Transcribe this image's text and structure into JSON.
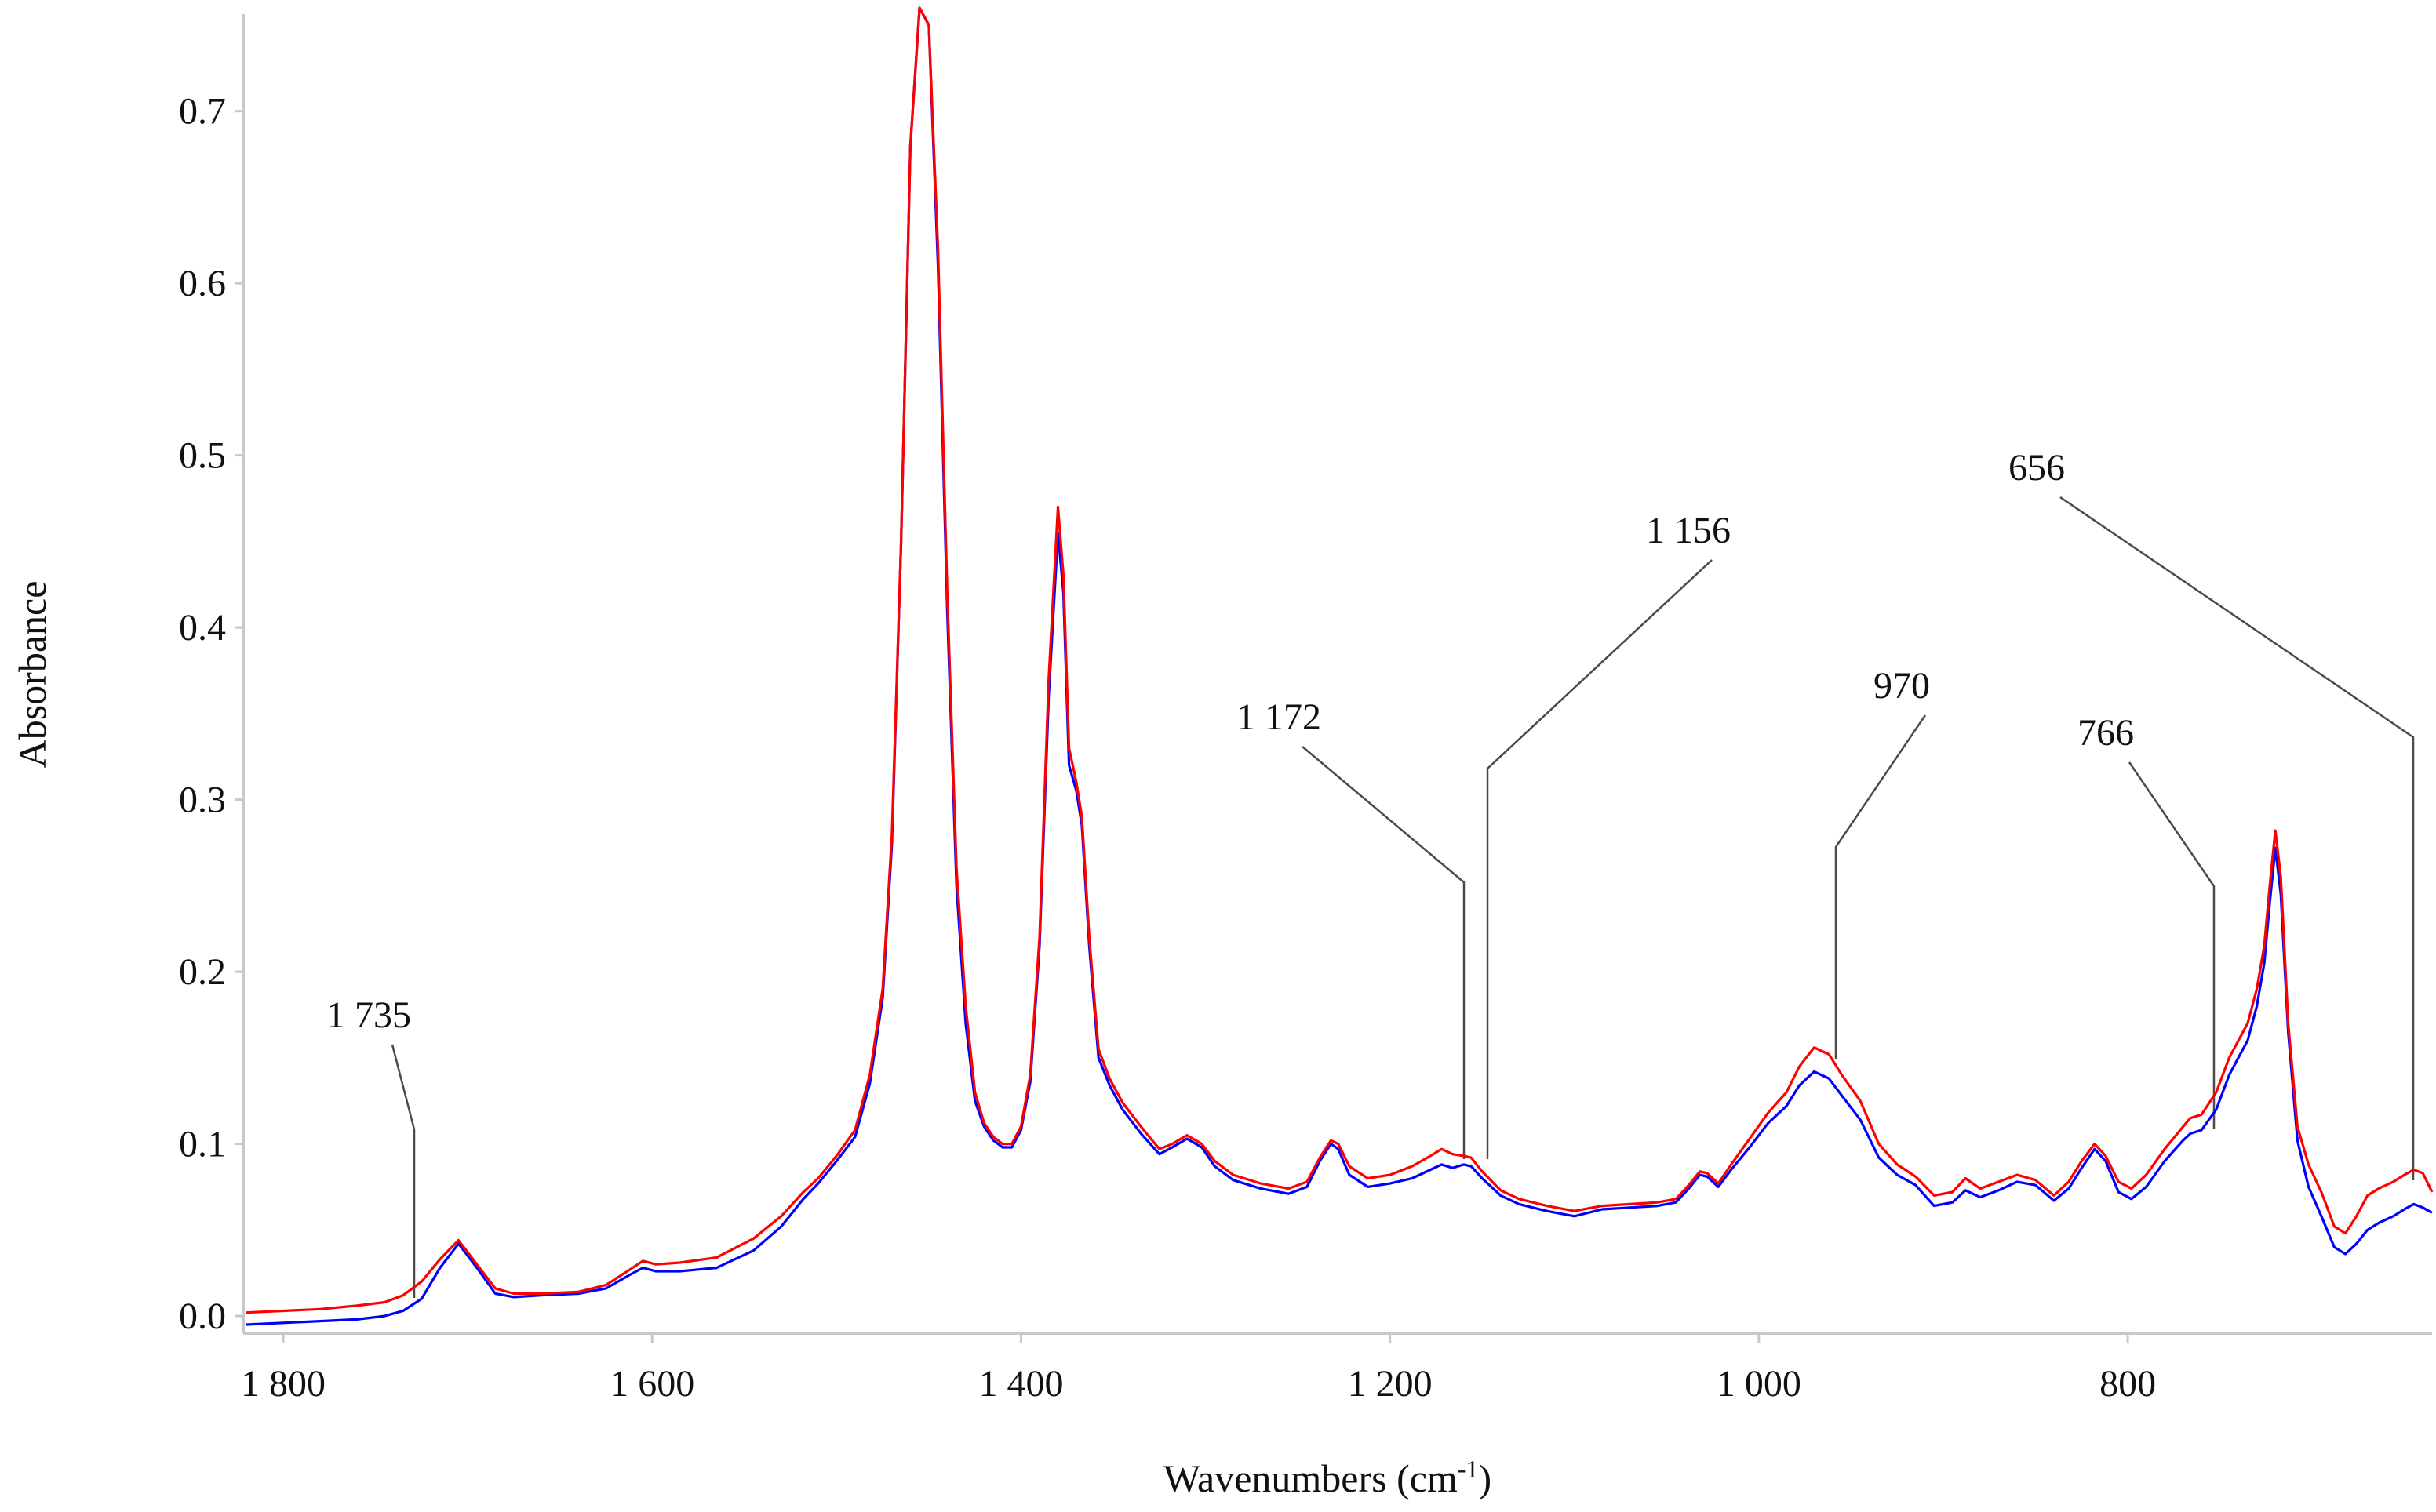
{
  "chart_data": {
    "type": "line",
    "title": "",
    "xlabel": "Wavenumbers (cm",
    "xlabel_sup": "-1",
    "xlabel_close": ")",
    "ylabel": "Absorbance",
    "xlim": [
      1820,
      635
    ],
    "ylim": [
      -0.01,
      0.76
    ],
    "x_reversed": true,
    "grid": false,
    "x_ticks": [
      {
        "value": 1800,
        "label": "1 800"
      },
      {
        "value": 1600,
        "label": "1 600"
      },
      {
        "value": 1400,
        "label": "1 400"
      },
      {
        "value": 1200,
        "label": "1 200"
      },
      {
        "value": 1000,
        "label": "1 000"
      },
      {
        "value": 800,
        "label": "800"
      }
    ],
    "y_ticks": [
      {
        "value": 0.0,
        "label": "0.0"
      },
      {
        "value": 0.1,
        "label": "0.1"
      },
      {
        "value": 0.2,
        "label": "0.2"
      },
      {
        "value": 0.3,
        "label": "0.3"
      },
      {
        "value": 0.4,
        "label": "0.4"
      },
      {
        "value": 0.5,
        "label": "0.5"
      },
      {
        "value": 0.6,
        "label": "0.6"
      },
      {
        "value": 0.7,
        "label": "0.7"
      }
    ],
    "series": [
      {
        "color": "#ff0000",
        "x": [
          1820,
          1800,
          1780,
          1760,
          1745,
          1735,
          1725,
          1715,
          1705,
          1695,
          1685,
          1675,
          1660,
          1640,
          1625,
          1612,
          1605,
          1598,
          1585,
          1565,
          1545,
          1530,
          1518,
          1510,
          1500,
          1490,
          1482,
          1475,
          1470,
          1465,
          1460,
          1455,
          1450,
          1445,
          1440,
          1435,
          1430,
          1425,
          1420,
          1415,
          1410,
          1405,
          1400,
          1395,
          1390,
          1385,
          1380,
          1377,
          1374,
          1370,
          1367,
          1363,
          1358,
          1352,
          1345,
          1335,
          1325,
          1318,
          1310,
          1302,
          1295,
          1285,
          1270,
          1255,
          1245,
          1238,
          1232,
          1228,
          1222,
          1212,
          1200,
          1188,
          1178,
          1172,
          1166,
          1160,
          1156,
          1150,
          1140,
          1130,
          1115,
          1100,
          1085,
          1070,
          1055,
          1045,
          1038,
          1032,
          1028,
          1022,
          1015,
          1005,
          995,
          985,
          978,
          970,
          962,
          955,
          945,
          935,
          925,
          915,
          905,
          895,
          888,
          880,
          870,
          860,
          850,
          840,
          832,
          825,
          818,
          812,
          805,
          798,
          790,
          780,
          770,
          766,
          760,
          752,
          745,
          740,
          735,
          730,
          726,
          723,
          720,
          717,
          713,
          708,
          702,
          695,
          688,
          682,
          676,
          670,
          664,
          656,
          650,
          645,
          640,
          635
        ],
        "y": [
          0.002,
          0.003,
          0.004,
          0.006,
          0.008,
          0.012,
          0.02,
          0.033,
          0.044,
          0.03,
          0.016,
          0.013,
          0.013,
          0.014,
          0.018,
          0.027,
          0.032,
          0.03,
          0.031,
          0.034,
          0.045,
          0.058,
          0.072,
          0.08,
          0.093,
          0.108,
          0.14,
          0.19,
          0.28,
          0.45,
          0.68,
          0.76,
          0.75,
          0.62,
          0.42,
          0.26,
          0.18,
          0.13,
          0.112,
          0.104,
          0.1,
          0.1,
          0.11,
          0.14,
          0.22,
          0.37,
          0.47,
          0.43,
          0.33,
          0.31,
          0.29,
          0.22,
          0.155,
          0.138,
          0.124,
          0.11,
          0.097,
          0.1,
          0.105,
          0.1,
          0.09,
          0.082,
          0.077,
          0.074,
          0.078,
          0.092,
          0.102,
          0.1,
          0.087,
          0.08,
          0.082,
          0.087,
          0.093,
          0.097,
          0.094,
          0.093,
          0.092,
          0.084,
          0.073,
          0.068,
          0.064,
          0.061,
          0.064,
          0.065,
          0.066,
          0.068,
          0.076,
          0.084,
          0.083,
          0.077,
          0.088,
          0.103,
          0.118,
          0.13,
          0.145,
          0.156,
          0.152,
          0.14,
          0.125,
          0.1,
          0.088,
          0.081,
          0.07,
          0.072,
          0.08,
          0.074,
          0.078,
          0.082,
          0.079,
          0.07,
          0.078,
          0.09,
          0.1,
          0.093,
          0.078,
          0.074,
          0.082,
          0.097,
          0.11,
          0.115,
          0.117,
          0.13,
          0.15,
          0.16,
          0.17,
          0.19,
          0.215,
          0.25,
          0.282,
          0.255,
          0.17,
          0.11,
          0.088,
          0.072,
          0.052,
          0.048,
          0.058,
          0.07,
          0.074,
          0.078,
          0.082,
          0.085,
          0.083,
          0.072
        ]
      },
      {
        "color": "#0000ff",
        "x": [
          1820,
          1800,
          1780,
          1760,
          1745,
          1735,
          1725,
          1715,
          1705,
          1695,
          1685,
          1675,
          1660,
          1640,
          1625,
          1612,
          1605,
          1598,
          1585,
          1565,
          1545,
          1530,
          1518,
          1510,
          1500,
          1490,
          1482,
          1475,
          1470,
          1465,
          1460,
          1455,
          1450,
          1445,
          1440,
          1435,
          1430,
          1425,
          1420,
          1415,
          1410,
          1405,
          1400,
          1395,
          1390,
          1385,
          1380,
          1377,
          1374,
          1370,
          1367,
          1363,
          1358,
          1352,
          1345,
          1335,
          1325,
          1318,
          1310,
          1302,
          1295,
          1285,
          1270,
          1255,
          1245,
          1238,
          1232,
          1228,
          1222,
          1212,
          1200,
          1188,
          1178,
          1172,
          1166,
          1160,
          1156,
          1150,
          1140,
          1130,
          1115,
          1100,
          1085,
          1070,
          1055,
          1045,
          1038,
          1032,
          1028,
          1022,
          1015,
          1005,
          995,
          985,
          978,
          970,
          962,
          955,
          945,
          935,
          925,
          915,
          905,
          895,
          888,
          880,
          870,
          860,
          850,
          840,
          832,
          825,
          818,
          812,
          805,
          798,
          790,
          780,
          770,
          766,
          760,
          752,
          745,
          740,
          735,
          730,
          726,
          723,
          720,
          717,
          713,
          708,
          702,
          695,
          688,
          682,
          676,
          670,
          664,
          656,
          650,
          645,
          640,
          635
        ],
        "y": [
          -0.005,
          -0.004,
          -0.003,
          -0.002,
          0.0,
          0.003,
          0.01,
          0.028,
          0.042,
          0.028,
          0.013,
          0.011,
          0.012,
          0.013,
          0.016,
          0.024,
          0.028,
          0.026,
          0.026,
          0.028,
          0.038,
          0.052,
          0.068,
          0.077,
          0.09,
          0.104,
          0.135,
          0.185,
          0.275,
          0.45,
          0.68,
          0.76,
          0.75,
          0.61,
          0.41,
          0.25,
          0.17,
          0.125,
          0.11,
          0.102,
          0.098,
          0.098,
          0.108,
          0.136,
          0.215,
          0.36,
          0.455,
          0.42,
          0.32,
          0.305,
          0.285,
          0.215,
          0.15,
          0.134,
          0.12,
          0.106,
          0.094,
          0.098,
          0.103,
          0.098,
          0.087,
          0.079,
          0.074,
          0.071,
          0.075,
          0.09,
          0.1,
          0.097,
          0.082,
          0.075,
          0.077,
          0.08,
          0.085,
          0.088,
          0.086,
          0.088,
          0.087,
          0.08,
          0.07,
          0.065,
          0.061,
          0.058,
          0.062,
          0.063,
          0.064,
          0.066,
          0.074,
          0.082,
          0.081,
          0.075,
          0.085,
          0.098,
          0.112,
          0.122,
          0.134,
          0.142,
          0.138,
          0.128,
          0.114,
          0.092,
          0.082,
          0.076,
          0.064,
          0.066,
          0.073,
          0.069,
          0.073,
          0.078,
          0.076,
          0.067,
          0.074,
          0.086,
          0.097,
          0.09,
          0.072,
          0.068,
          0.075,
          0.09,
          0.102,
          0.106,
          0.108,
          0.12,
          0.14,
          0.15,
          0.16,
          0.18,
          0.205,
          0.24,
          0.272,
          0.245,
          0.165,
          0.102,
          0.075,
          0.058,
          0.04,
          0.036,
          0.042,
          0.05,
          0.054,
          0.058,
          0.062,
          0.065,
          0.063,
          0.06
        ]
      }
    ],
    "annotations": [
      {
        "label": "1 735",
        "peak_x": 1735
      },
      {
        "label": "1 172",
        "peak_x": 1172
      },
      {
        "label": "1 156",
        "peak_x": 1156
      },
      {
        "label": "970",
        "peak_x": 970
      },
      {
        "label": "766",
        "peak_x": 766
      },
      {
        "label": "656",
        "peak_x": 656
      }
    ]
  }
}
